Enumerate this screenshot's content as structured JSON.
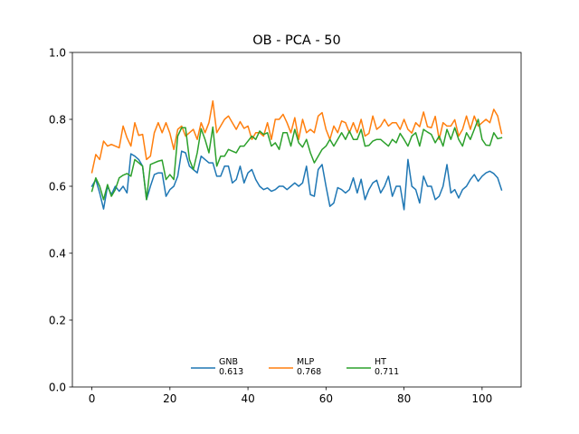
{
  "chart_data": {
    "type": "line",
    "title": "OB - PCA - 50",
    "xlabel": "",
    "ylabel": "",
    "xlim": [
      -5,
      110
    ],
    "ylim": [
      0,
      1.0
    ],
    "xticks": [
      0,
      20,
      40,
      60,
      80,
      100
    ],
    "yticks": [
      0.0,
      0.2,
      0.4,
      0.6,
      0.8,
      1.0
    ],
    "grid": false,
    "legend_position": "lower center",
    "x": [
      0,
      1,
      2,
      3,
      4,
      5,
      6,
      7,
      8,
      9,
      10,
      11,
      12,
      13,
      14,
      15,
      16,
      17,
      18,
      19,
      20,
      21,
      22,
      23,
      24,
      25,
      26,
      27,
      28,
      29,
      30,
      31,
      32,
      33,
      34,
      35,
      36,
      37,
      38,
      39,
      40,
      41,
      42,
      43,
      44,
      45,
      46,
      47,
      48,
      49,
      50,
      51,
      52,
      53,
      54,
      55,
      56,
      57,
      58,
      59,
      60,
      61,
      62,
      63,
      64,
      65,
      66,
      67,
      68,
      69,
      70,
      71,
      72,
      73,
      74,
      75,
      76,
      77,
      78,
      79,
      80,
      81,
      82,
      83,
      84,
      85,
      86,
      87,
      88,
      89,
      90,
      91,
      92,
      93,
      94,
      95,
      96,
      97,
      98,
      99,
      100,
      101,
      102,
      103,
      104,
      105
    ],
    "series": [
      {
        "name": "GNB",
        "score": "0.613",
        "color": "#1f77b4",
        "values": [
          0.6,
          0.62,
          0.58,
          0.532,
          0.6,
          0.575,
          0.6,
          0.585,
          0.6,
          0.58,
          0.697,
          0.69,
          0.68,
          0.66,
          0.56,
          0.6,
          0.635,
          0.64,
          0.64,
          0.57,
          0.59,
          0.6,
          0.63,
          0.705,
          0.7,
          0.66,
          0.65,
          0.64,
          0.69,
          0.68,
          0.67,
          0.67,
          0.63,
          0.63,
          0.66,
          0.66,
          0.61,
          0.62,
          0.66,
          0.61,
          0.64,
          0.65,
          0.62,
          0.6,
          0.59,
          0.595,
          0.585,
          0.59,
          0.6,
          0.6,
          0.59,
          0.6,
          0.61,
          0.6,
          0.61,
          0.66,
          0.575,
          0.57,
          0.65,
          0.665,
          0.6,
          0.54,
          0.55,
          0.596,
          0.59,
          0.58,
          0.59,
          0.625,
          0.58,
          0.621,
          0.56,
          0.59,
          0.61,
          0.618,
          0.58,
          0.6,
          0.63,
          0.57,
          0.6,
          0.6,
          0.53,
          0.68,
          0.6,
          0.59,
          0.55,
          0.63,
          0.6,
          0.6,
          0.56,
          0.57,
          0.6,
          0.665,
          0.58,
          0.59,
          0.565,
          0.59,
          0.6,
          0.62,
          0.635,
          0.615,
          0.63,
          0.64,
          0.645,
          0.638,
          0.625,
          0.589
        ]
      },
      {
        "name": "MLP",
        "score": "0.768",
        "color": "#ff7f0e",
        "values": [
          0.641,
          0.695,
          0.68,
          0.735,
          0.72,
          0.725,
          0.72,
          0.715,
          0.78,
          0.745,
          0.72,
          0.79,
          0.752,
          0.755,
          0.68,
          0.69,
          0.76,
          0.79,
          0.76,
          0.79,
          0.758,
          0.71,
          0.77,
          0.78,
          0.75,
          0.76,
          0.77,
          0.74,
          0.79,
          0.76,
          0.79,
          0.855,
          0.76,
          0.78,
          0.8,
          0.81,
          0.79,
          0.77,
          0.793,
          0.773,
          0.78,
          0.74,
          0.76,
          0.76,
          0.75,
          0.79,
          0.74,
          0.8,
          0.8,
          0.815,
          0.79,
          0.76,
          0.805,
          0.74,
          0.8,
          0.76,
          0.77,
          0.76,
          0.81,
          0.82,
          0.77,
          0.74,
          0.78,
          0.76,
          0.795,
          0.79,
          0.76,
          0.79,
          0.76,
          0.8,
          0.75,
          0.758,
          0.81,
          0.77,
          0.78,
          0.8,
          0.78,
          0.79,
          0.79,
          0.77,
          0.8,
          0.77,
          0.759,
          0.79,
          0.778,
          0.822,
          0.778,
          0.775,
          0.809,
          0.74,
          0.79,
          0.78,
          0.78,
          0.799,
          0.75,
          0.77,
          0.81,
          0.77,
          0.81,
          0.78,
          0.79,
          0.8,
          0.79,
          0.83,
          0.81,
          0.758
        ]
      },
      {
        "name": "HT",
        "score": "0.711",
        "color": "#2ca02c",
        "values": [
          0.585,
          0.625,
          0.6,
          0.56,
          0.605,
          0.57,
          0.59,
          0.625,
          0.633,
          0.638,
          0.63,
          0.68,
          0.67,
          0.66,
          0.56,
          0.665,
          0.67,
          0.675,
          0.678,
          0.62,
          0.635,
          0.62,
          0.75,
          0.775,
          0.775,
          0.68,
          0.65,
          0.7,
          0.772,
          0.74,
          0.7,
          0.777,
          0.66,
          0.69,
          0.69,
          0.71,
          0.705,
          0.7,
          0.72,
          0.72,
          0.735,
          0.75,
          0.74,
          0.765,
          0.755,
          0.76,
          0.72,
          0.73,
          0.71,
          0.76,
          0.76,
          0.72,
          0.77,
          0.73,
          0.717,
          0.74,
          0.7,
          0.67,
          0.69,
          0.71,
          0.72,
          0.74,
          0.72,
          0.74,
          0.76,
          0.74,
          0.765,
          0.74,
          0.74,
          0.77,
          0.72,
          0.722,
          0.735,
          0.74,
          0.74,
          0.73,
          0.72,
          0.74,
          0.73,
          0.758,
          0.74,
          0.72,
          0.75,
          0.76,
          0.72,
          0.77,
          0.762,
          0.755,
          0.73,
          0.75,
          0.72,
          0.77,
          0.74,
          0.775,
          0.74,
          0.72,
          0.76,
          0.74,
          0.77,
          0.8,
          0.74,
          0.723,
          0.722,
          0.76,
          0.742,
          0.745
        ]
      }
    ]
  }
}
